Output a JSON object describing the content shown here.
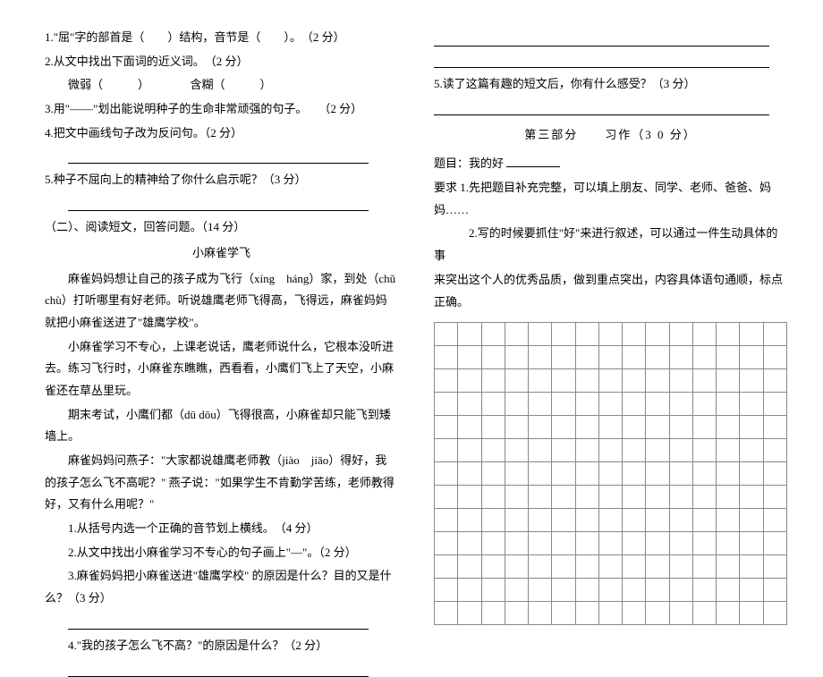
{
  "left": {
    "q1": "1.\"屈\"字的部首是（　　）结构，音节是（　　）。　（2 分）",
    "q2": "2.从文中找出下面词的近义词。　（2 分）",
    "q2_line": "　　微弱（　　　）　　　　含糊（　　　）",
    "q3": "3.用\"——\"划出能说明种子的生命非常顽强的句子。　　（2 分）",
    "q4": "4.把文中画线句子改为反问句。（2 分）",
    "q5": "5.种子不屈向上的精神给了你什么启示呢？（3 分）",
    "part2_heading": "（二）、阅读短文，回答问题。（14 分）",
    "passage_title": "小麻雀学飞",
    "p1": "麻雀妈妈想让自己的孩子成为飞行（xíng　háng）家，到处（chǔ chù）打听哪里有好老师。听说雄鹰老师飞得高，飞得远，麻雀妈妈就把小麻雀送进了\"雄鹰学校\"。",
    "p2": "小麻雀学习不专心，上课老说话，鹰老师说什么，它根本没听进去。练习飞行时，小麻雀东瞧瞧，西看看，小鹰们飞上了天空，小麻雀还在草丛里玩。",
    "p3": "期末考试，小鹰们都（dū dōu）飞得很高，小麻雀却只能飞到矮墙上。",
    "p4": "麻雀妈妈问燕子：\"大家都说雄鹰老师教（jiào　jiāo）得好，我的孩子怎么飞不高呢？\" 燕子说：\"如果学生不肯勤学苦练，老师教得好，又有什么用呢？\"",
    "pq1": "1.从括号内选一个正确的音节划上横线。　（4 分）",
    "pq2": "2.从文中找出小麻雀学习不专心的句子画上\"—\"。（2 分）",
    "pq3": "3.麻雀妈妈把小麻雀送进\"雄鹰学校\" 的原因是什么？目的又是什么？（3 分）",
    "pq4": "4.\"我的孩子怎么飞不高？\"的原因是什么？（2 分）"
  },
  "right": {
    "q5": "5.读了这篇有趣的短文后，你有什么感受？（3 分）",
    "section3_title": "第三部分　　习作（3 0 分）",
    "topic_label": "题目：我的好",
    "req1": "要求 1.先把题目补充完整，可以填上朋友、同学、老师、爸爸、妈妈……",
    "req2": "　　　2.写的时候要抓住\"好\"来进行叙述，可以通过一件生动具体的事",
    "req3": "来突出这个人的优秀品质，做到重点突出，内容具体语句通顺，标点正确。"
  },
  "grid": {
    "rows": 13,
    "cols": 15,
    "border_color": "#888888",
    "cell_size": 26
  },
  "style": {
    "background_color": "#ffffff",
    "text_color": "#000000",
    "font_family": "SimSun",
    "base_fontsize": 13,
    "line_height": 1.9
  }
}
